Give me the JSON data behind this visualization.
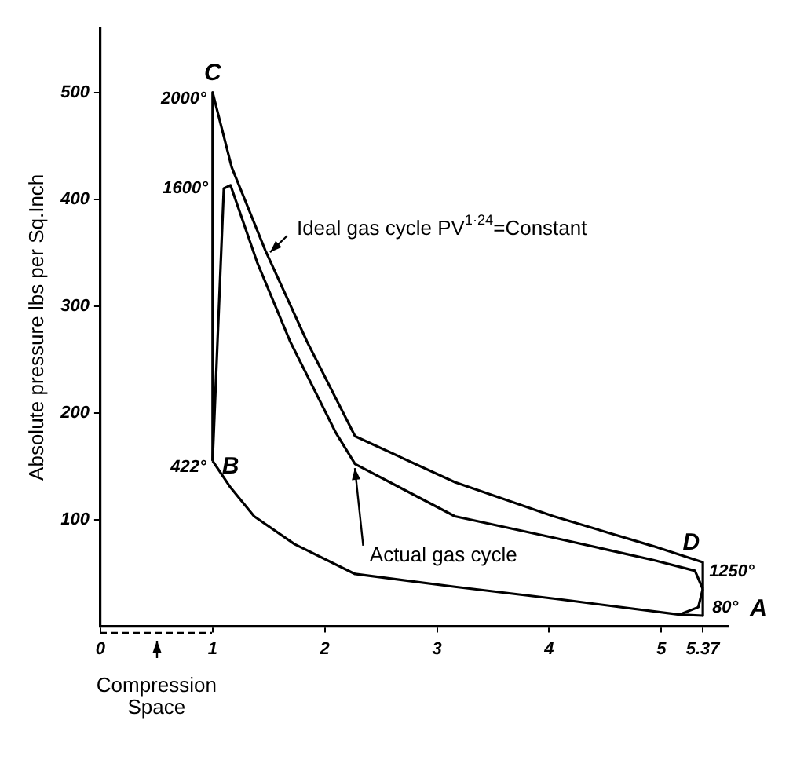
{
  "chart_data": {
    "type": "line",
    "ylabel": "Absolute pressure lbs per Sq.Inch",
    "xlim": [
      0,
      5.6
    ],
    "ylim": [
      0,
      560
    ],
    "xticks": [
      0,
      1,
      2,
      3,
      4,
      5,
      5.37
    ],
    "yticks": [
      100,
      200,
      300,
      400,
      500
    ],
    "grid": false,
    "legend": false,
    "marker": "none",
    "line_style": "solid",
    "series": [
      {
        "name": "Ideal gas cycle PV$^{1·24}$=Constant",
        "color": "#000000",
        "x": [
          1,
          1,
          1.17,
          1.47,
          1.84,
          2.27,
          3.16,
          4.04,
          4.93,
          5.37,
          5.37
        ],
        "values": [
          155,
          500,
          430,
          352,
          267,
          178,
          135,
          103,
          75,
          60,
          10
        ]
      },
      {
        "name": "Actual gas cycle",
        "color": "#000000",
        "x": [
          1,
          1.1,
          1.16,
          1.4,
          1.69,
          2.1,
          2.27,
          3.16,
          4.04,
          4.93,
          5.3,
          5.37
        ],
        "values": [
          155,
          410,
          413,
          340,
          267,
          181,
          152,
          103,
          83,
          62,
          52,
          35
        ]
      },
      {
        "color": "#000000",
        "x": [
          1,
          1.16,
          1.37,
          1.73,
          2.27,
          3.16,
          4.04,
          5.16,
          5.37
        ],
        "values": [
          155,
          130,
          103,
          77,
          49,
          37,
          26,
          11,
          10
        ]
      },
      {
        "color": "#000000",
        "x": [
          5.16,
          5.33,
          5.37
        ],
        "values": [
          11,
          18,
          35
        ]
      }
    ],
    "annotations": [
      {
        "text": "C",
        "x": 1,
        "y": 500
      },
      {
        "text": "2000°",
        "x": 1,
        "y": 500
      },
      {
        "text": "1600°",
        "x": 1.1,
        "y": 413
      },
      {
        "text": "B",
        "x": 1,
        "y": 155
      },
      {
        "text": "422°",
        "x": 1,
        "y": 155
      },
      {
        "text": "D",
        "x": 5.37,
        "y": 60
      },
      {
        "text": "1250°",
        "x": 5.37,
        "y": 60
      },
      {
        "text": "A",
        "x": 5.37,
        "y": 10
      },
      {
        "text": "80°",
        "x": 5.37,
        "y": 10
      },
      "Compression Space"
    ]
  }
}
